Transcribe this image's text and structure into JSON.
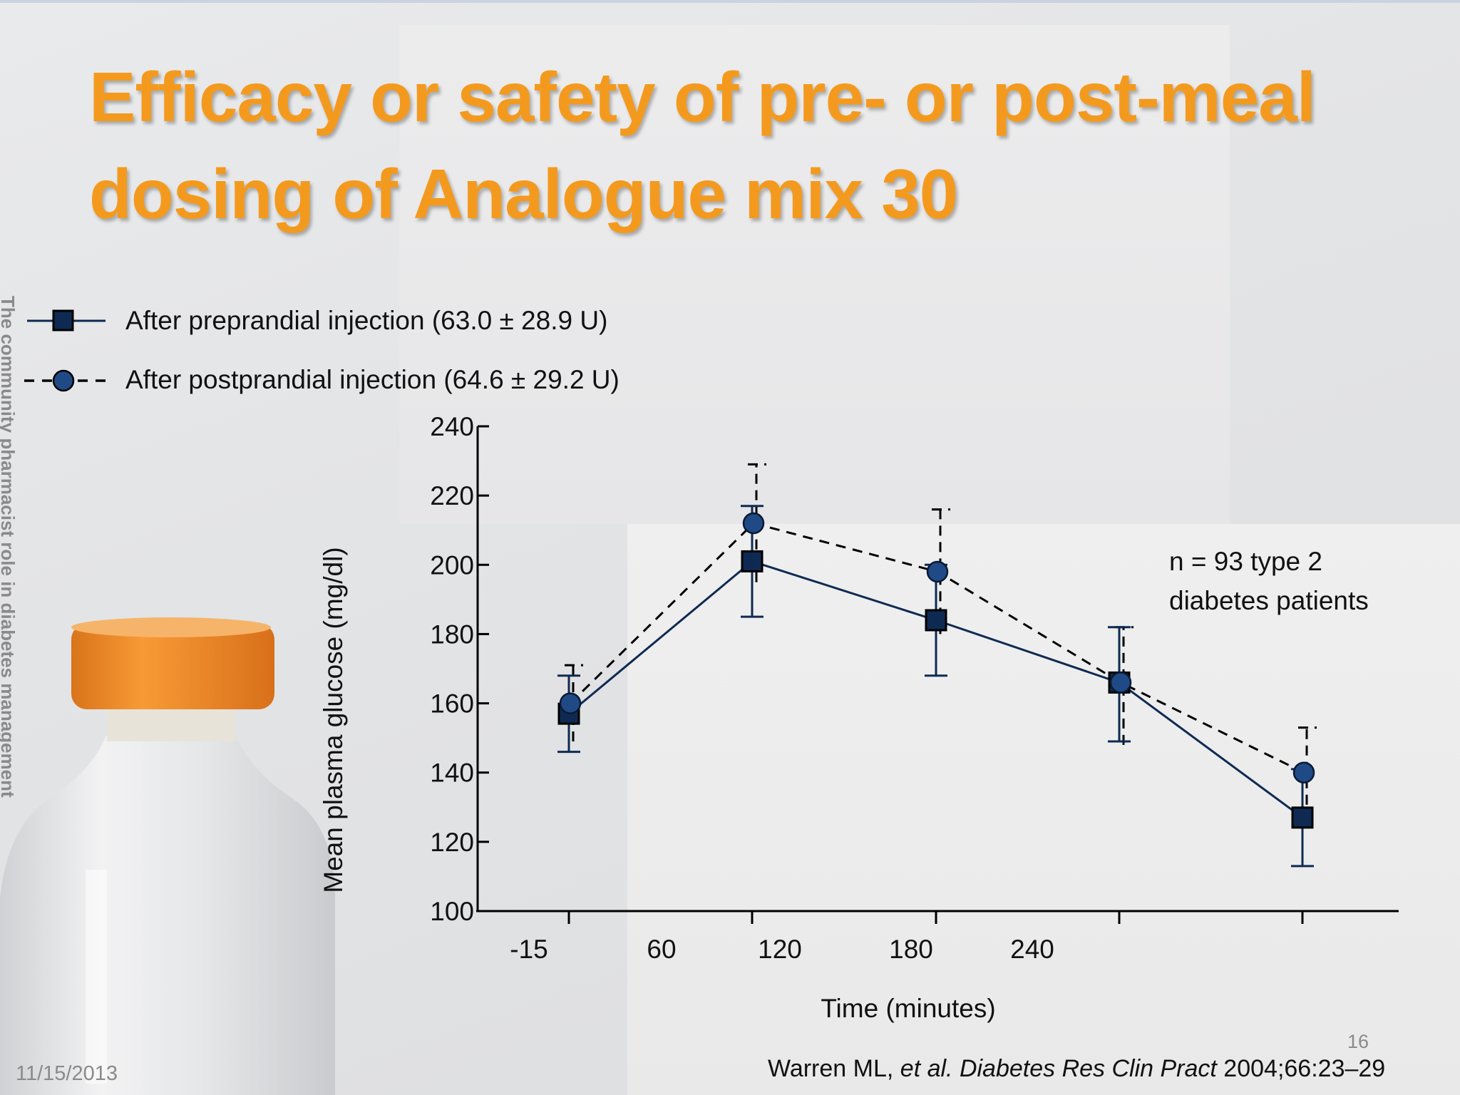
{
  "slide": {
    "title_line1": "Efficacy or safety of pre- or post-meal",
    "title_line2": "dosing of Analogue mix 30",
    "side_text": "The community pharmacist role in diabetes management",
    "date": "11/15/2013",
    "slide_number": "16",
    "citation_author": "Warren ML, ",
    "citation_journal": "et al. Diabetes Res Clin Pract",
    "citation_rest": " 2004;66:23–29",
    "annotation_line1": "n = 93 type 2",
    "annotation_line2": "diabetes patients"
  },
  "colors": {
    "title": "#f39a1e",
    "series_pre": "#0f2a52",
    "series_post": "#1f4a86",
    "axis": "#000000",
    "bottle_cap": "#ee8a22"
  },
  "chart_data": {
    "type": "line",
    "xlabel": "Time (minutes)",
    "ylabel": "Mean plasma glucose (mg/dl)",
    "ylim": [
      100,
      240
    ],
    "yticks": [
      100,
      120,
      140,
      160,
      180,
      200,
      220,
      240
    ],
    "x_tick_labels": [
      "-15",
      "60",
      "120",
      "180",
      "240"
    ],
    "legend_position": "top-left",
    "series": [
      {
        "name": "After preprandial injection (63.0 ± 28.9 U)",
        "line_style": "solid",
        "marker": "square",
        "values": [
          157,
          201,
          184,
          166,
          127
        ],
        "err_low": [
          146,
          185,
          168,
          149,
          113
        ],
        "err_high": [
          168,
          217,
          200,
          182,
          141
        ]
      },
      {
        "name": "After postprandial injection (64.6 ± 29.2 U)",
        "line_style": "dashed",
        "marker": "circle",
        "values": [
          160,
          212,
          198,
          166,
          140
        ],
        "err_low": [
          149,
          195,
          180,
          148,
          126
        ],
        "err_high": [
          171,
          229,
          216,
          182,
          153
        ]
      }
    ]
  }
}
